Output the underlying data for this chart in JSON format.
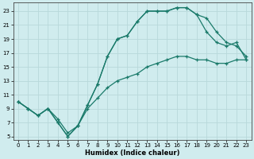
{
  "xlabel": "Humidex (Indice chaleur)",
  "bg_color": "#d0ecee",
  "grid_color": "#b8d8da",
  "line_color": "#1a7a6a",
  "xlim": [
    -0.5,
    23.5
  ],
  "ylim": [
    4.5,
    24.2
  ],
  "xticks": [
    0,
    1,
    2,
    3,
    4,
    5,
    6,
    7,
    8,
    9,
    10,
    11,
    12,
    13,
    14,
    15,
    16,
    17,
    18,
    19,
    20,
    21,
    22,
    23
  ],
  "yticks": [
    5,
    7,
    9,
    11,
    13,
    15,
    17,
    19,
    21,
    23
  ],
  "line1_x": [
    0,
    1,
    2,
    3,
    4,
    5,
    6,
    7,
    8,
    9,
    10,
    11,
    12,
    13,
    14,
    15,
    16,
    17,
    18,
    19,
    20,
    21,
    22,
    23
  ],
  "line1_y": [
    10,
    9,
    8,
    9,
    7,
    5,
    6.5,
    9.5,
    12.5,
    16.5,
    19,
    19.5,
    21.5,
    23,
    23,
    23,
    23.5,
    23.5,
    22.5,
    22,
    20,
    18.5,
    18,
    16.5
  ],
  "line2_x": [
    0,
    1,
    2,
    3,
    4,
    5,
    6,
    7,
    8,
    9,
    10,
    11,
    12,
    13,
    14,
    15,
    16,
    17,
    18,
    19,
    20,
    21,
    22,
    23
  ],
  "line2_y": [
    10,
    9,
    8,
    9,
    7,
    5,
    6.5,
    9.5,
    12.5,
    16.5,
    19,
    19.5,
    21.5,
    23,
    23,
    23,
    23.5,
    23.5,
    22.5,
    20,
    18.5,
    18,
    18.5,
    16
  ],
  "line3_x": [
    0,
    1,
    2,
    3,
    4,
    5,
    6,
    7,
    8,
    9,
    10,
    11,
    12,
    13,
    14,
    15,
    16,
    17,
    18,
    19,
    20,
    21,
    22,
    23
  ],
  "line3_y": [
    10,
    9,
    8,
    9,
    7.5,
    5.5,
    6.5,
    9,
    10.5,
    12,
    13,
    13.5,
    14,
    15,
    15.5,
    16,
    16.5,
    16.5,
    16,
    16,
    15.5,
    15.5,
    16,
    16
  ]
}
